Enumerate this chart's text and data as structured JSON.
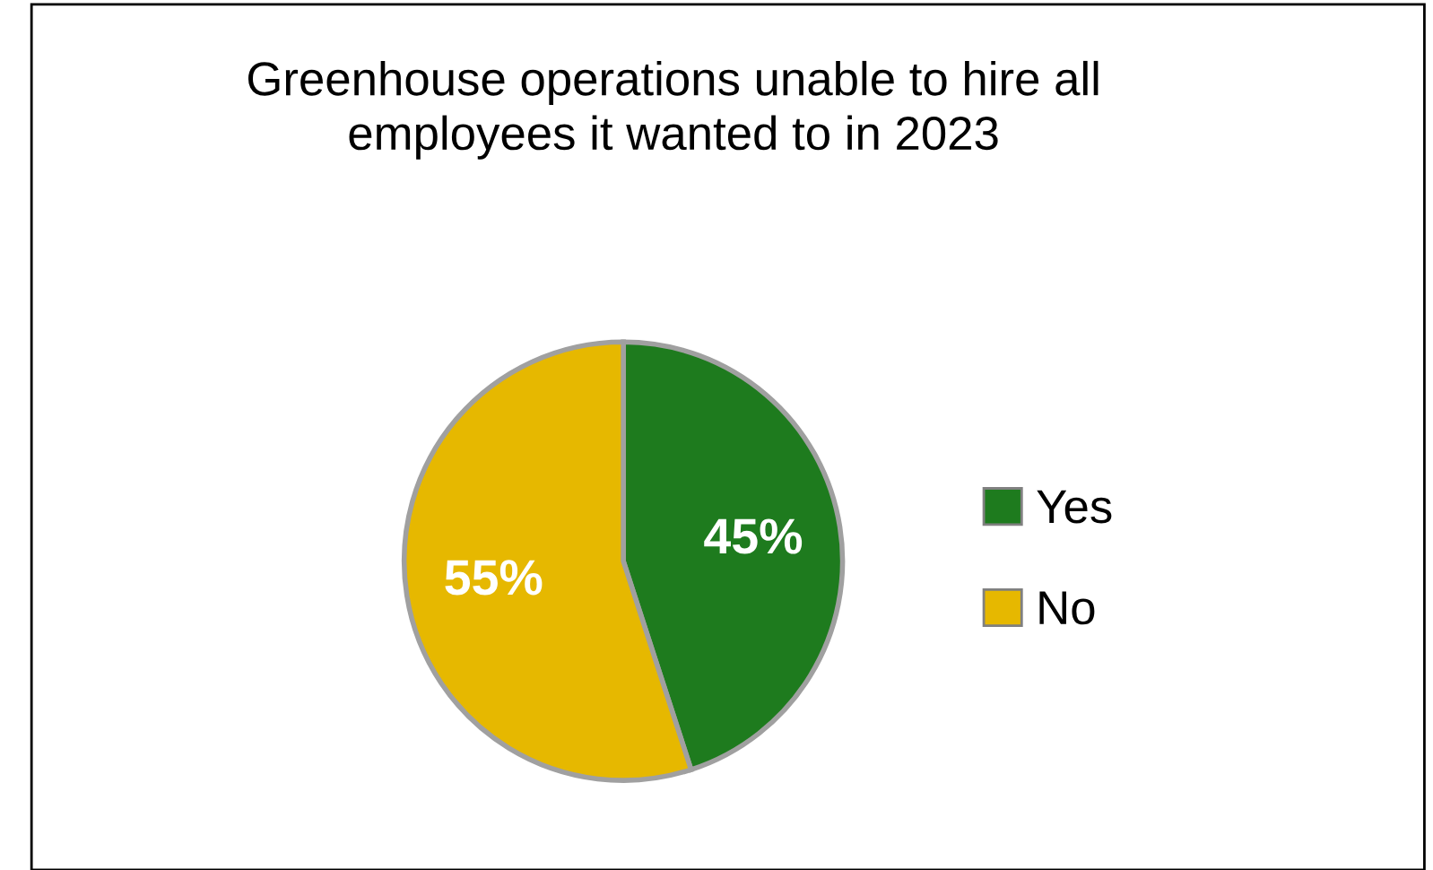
{
  "chart_data": {
    "type": "pie",
    "title": "Greenhouse operations unable to hire all\nemployees it wanted to in 2023",
    "categories": [
      "Yes",
      "No"
    ],
    "values": [
      45,
      55
    ],
    "colors": [
      "#1e7b1e",
      "#e6b800"
    ],
    "value_labels": [
      "45%",
      "55%"
    ],
    "legend": "right"
  }
}
